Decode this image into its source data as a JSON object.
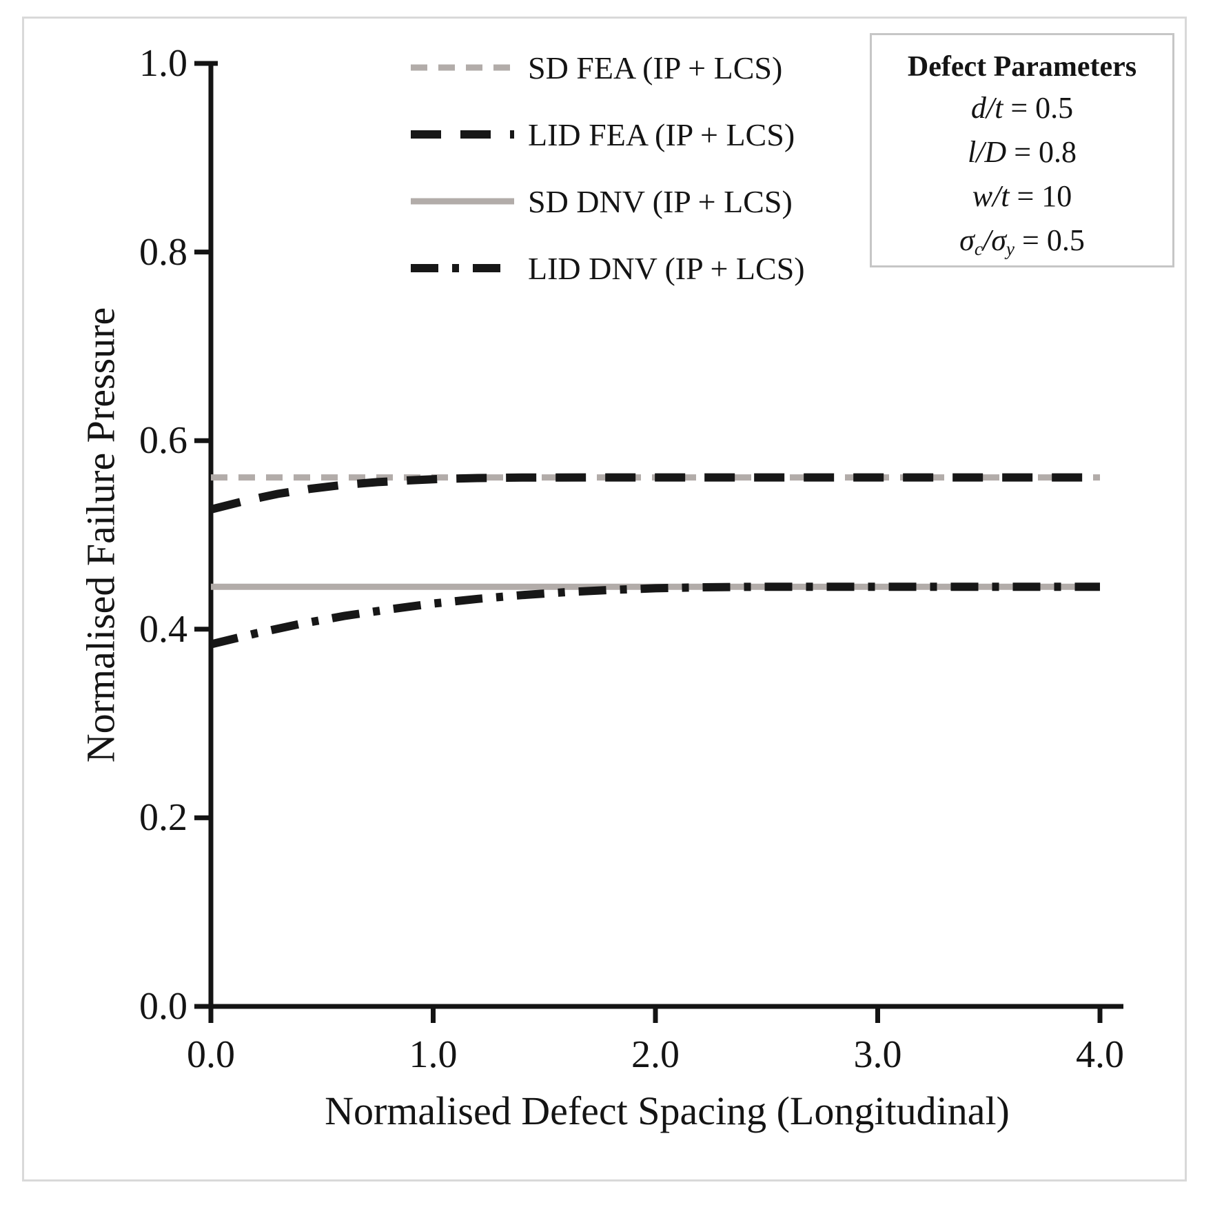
{
  "chart_data": {
    "type": "line",
    "title": "",
    "xlabel": "Normalised Defect Spacing (Longitudinal)",
    "ylabel": "Normalised Failure Pressure",
    "xlim": [
      0.0,
      4.0
    ],
    "ylim": [
      0.0,
      1.0
    ],
    "grid": false,
    "legend_position": "inside-top-center",
    "x_ticks": [
      {
        "value": 0.0,
        "label": "0.0"
      },
      {
        "value": 1.0,
        "label": "1.0"
      },
      {
        "value": 2.0,
        "label": "2.0"
      },
      {
        "value": 3.0,
        "label": "3.0"
      },
      {
        "value": 4.0,
        "label": "4.0"
      }
    ],
    "y_ticks": [
      {
        "value": 1.0,
        "label": "1.0"
      },
      {
        "value": 0.8,
        "label": "0.8"
      },
      {
        "value": 0.6,
        "label": "0.6"
      },
      {
        "value": 0.4,
        "label": "0.4"
      },
      {
        "value": 0.2,
        "label": "0.2"
      },
      {
        "value": 0.0,
        "label": "0.0"
      }
    ],
    "series": [
      {
        "id": "sd_fea",
        "label": "SD FEA (IP + LCS)",
        "color": "#b2aca9",
        "dash": "short-dash",
        "width": 9,
        "points": [
          [
            0.0,
            0.561
          ],
          [
            4.0,
            0.561
          ]
        ]
      },
      {
        "id": "lid_fea",
        "label": "LID FEA (IP + LCS)",
        "color": "#171717",
        "dash": "long-dash",
        "width": 12,
        "points": [
          [
            0.0,
            0.527
          ],
          [
            0.15,
            0.536
          ],
          [
            0.3,
            0.5435
          ],
          [
            0.45,
            0.549
          ],
          [
            0.6,
            0.5532
          ],
          [
            0.75,
            0.556
          ],
          [
            0.9,
            0.558
          ],
          [
            1.05,
            0.5595
          ],
          [
            1.2,
            0.5603
          ],
          [
            1.4,
            0.5608
          ],
          [
            1.7,
            0.561
          ],
          [
            4.0,
            0.561
          ]
        ]
      },
      {
        "id": "sd_dnv",
        "label": "SD DNV (IP + LCS)",
        "color": "#b2aca9",
        "dash": "solid",
        "width": 9,
        "points": [
          [
            0.0,
            0.445
          ],
          [
            4.0,
            0.445
          ]
        ]
      },
      {
        "id": "lid_dnv",
        "label": "LID DNV (IP + LCS)",
        "color": "#171717",
        "dash": "dash-dot",
        "width": 12,
        "points": [
          [
            0.0,
            0.384
          ],
          [
            0.2,
            0.3955
          ],
          [
            0.4,
            0.4055
          ],
          [
            0.6,
            0.414
          ],
          [
            0.8,
            0.421
          ],
          [
            1.0,
            0.4272
          ],
          [
            1.2,
            0.4322
          ],
          [
            1.4,
            0.4362
          ],
          [
            1.6,
            0.4393
          ],
          [
            1.8,
            0.4417
          ],
          [
            2.0,
            0.4434
          ],
          [
            2.2,
            0.4444
          ],
          [
            2.4,
            0.4449
          ],
          [
            2.6,
            0.445
          ],
          [
            4.0,
            0.445
          ]
        ]
      }
    ]
  },
  "defect_parameters": {
    "title": "Defect Parameters",
    "rows": [
      {
        "segments": [
          {
            "t": "d/t",
            "i": true
          },
          {
            "t": " = 0.5"
          }
        ]
      },
      {
        "segments": [
          {
            "t": "l/D",
            "i": true
          },
          {
            "t": " = 0.8"
          }
        ]
      },
      {
        "segments": [
          {
            "t": "w/t",
            "i": true
          },
          {
            "t": " = 10"
          }
        ]
      },
      {
        "segments": [
          {
            "t": "σ",
            "i": true
          },
          {
            "t": "c",
            "i": true,
            "sub": true
          },
          {
            "t": "/σ",
            "i": true
          },
          {
            "t": "y",
            "i": true,
            "sub": true
          },
          {
            "t": " = 0.5"
          }
        ]
      }
    ]
  },
  "colors": {
    "axis": "#141414",
    "text": "#141414",
    "frame_border": "#d9d9d9",
    "param_box_border": "#c6c6c6",
    "series_gray": "#b2aca9",
    "series_black": "#171717",
    "background": "#ffffff"
  }
}
